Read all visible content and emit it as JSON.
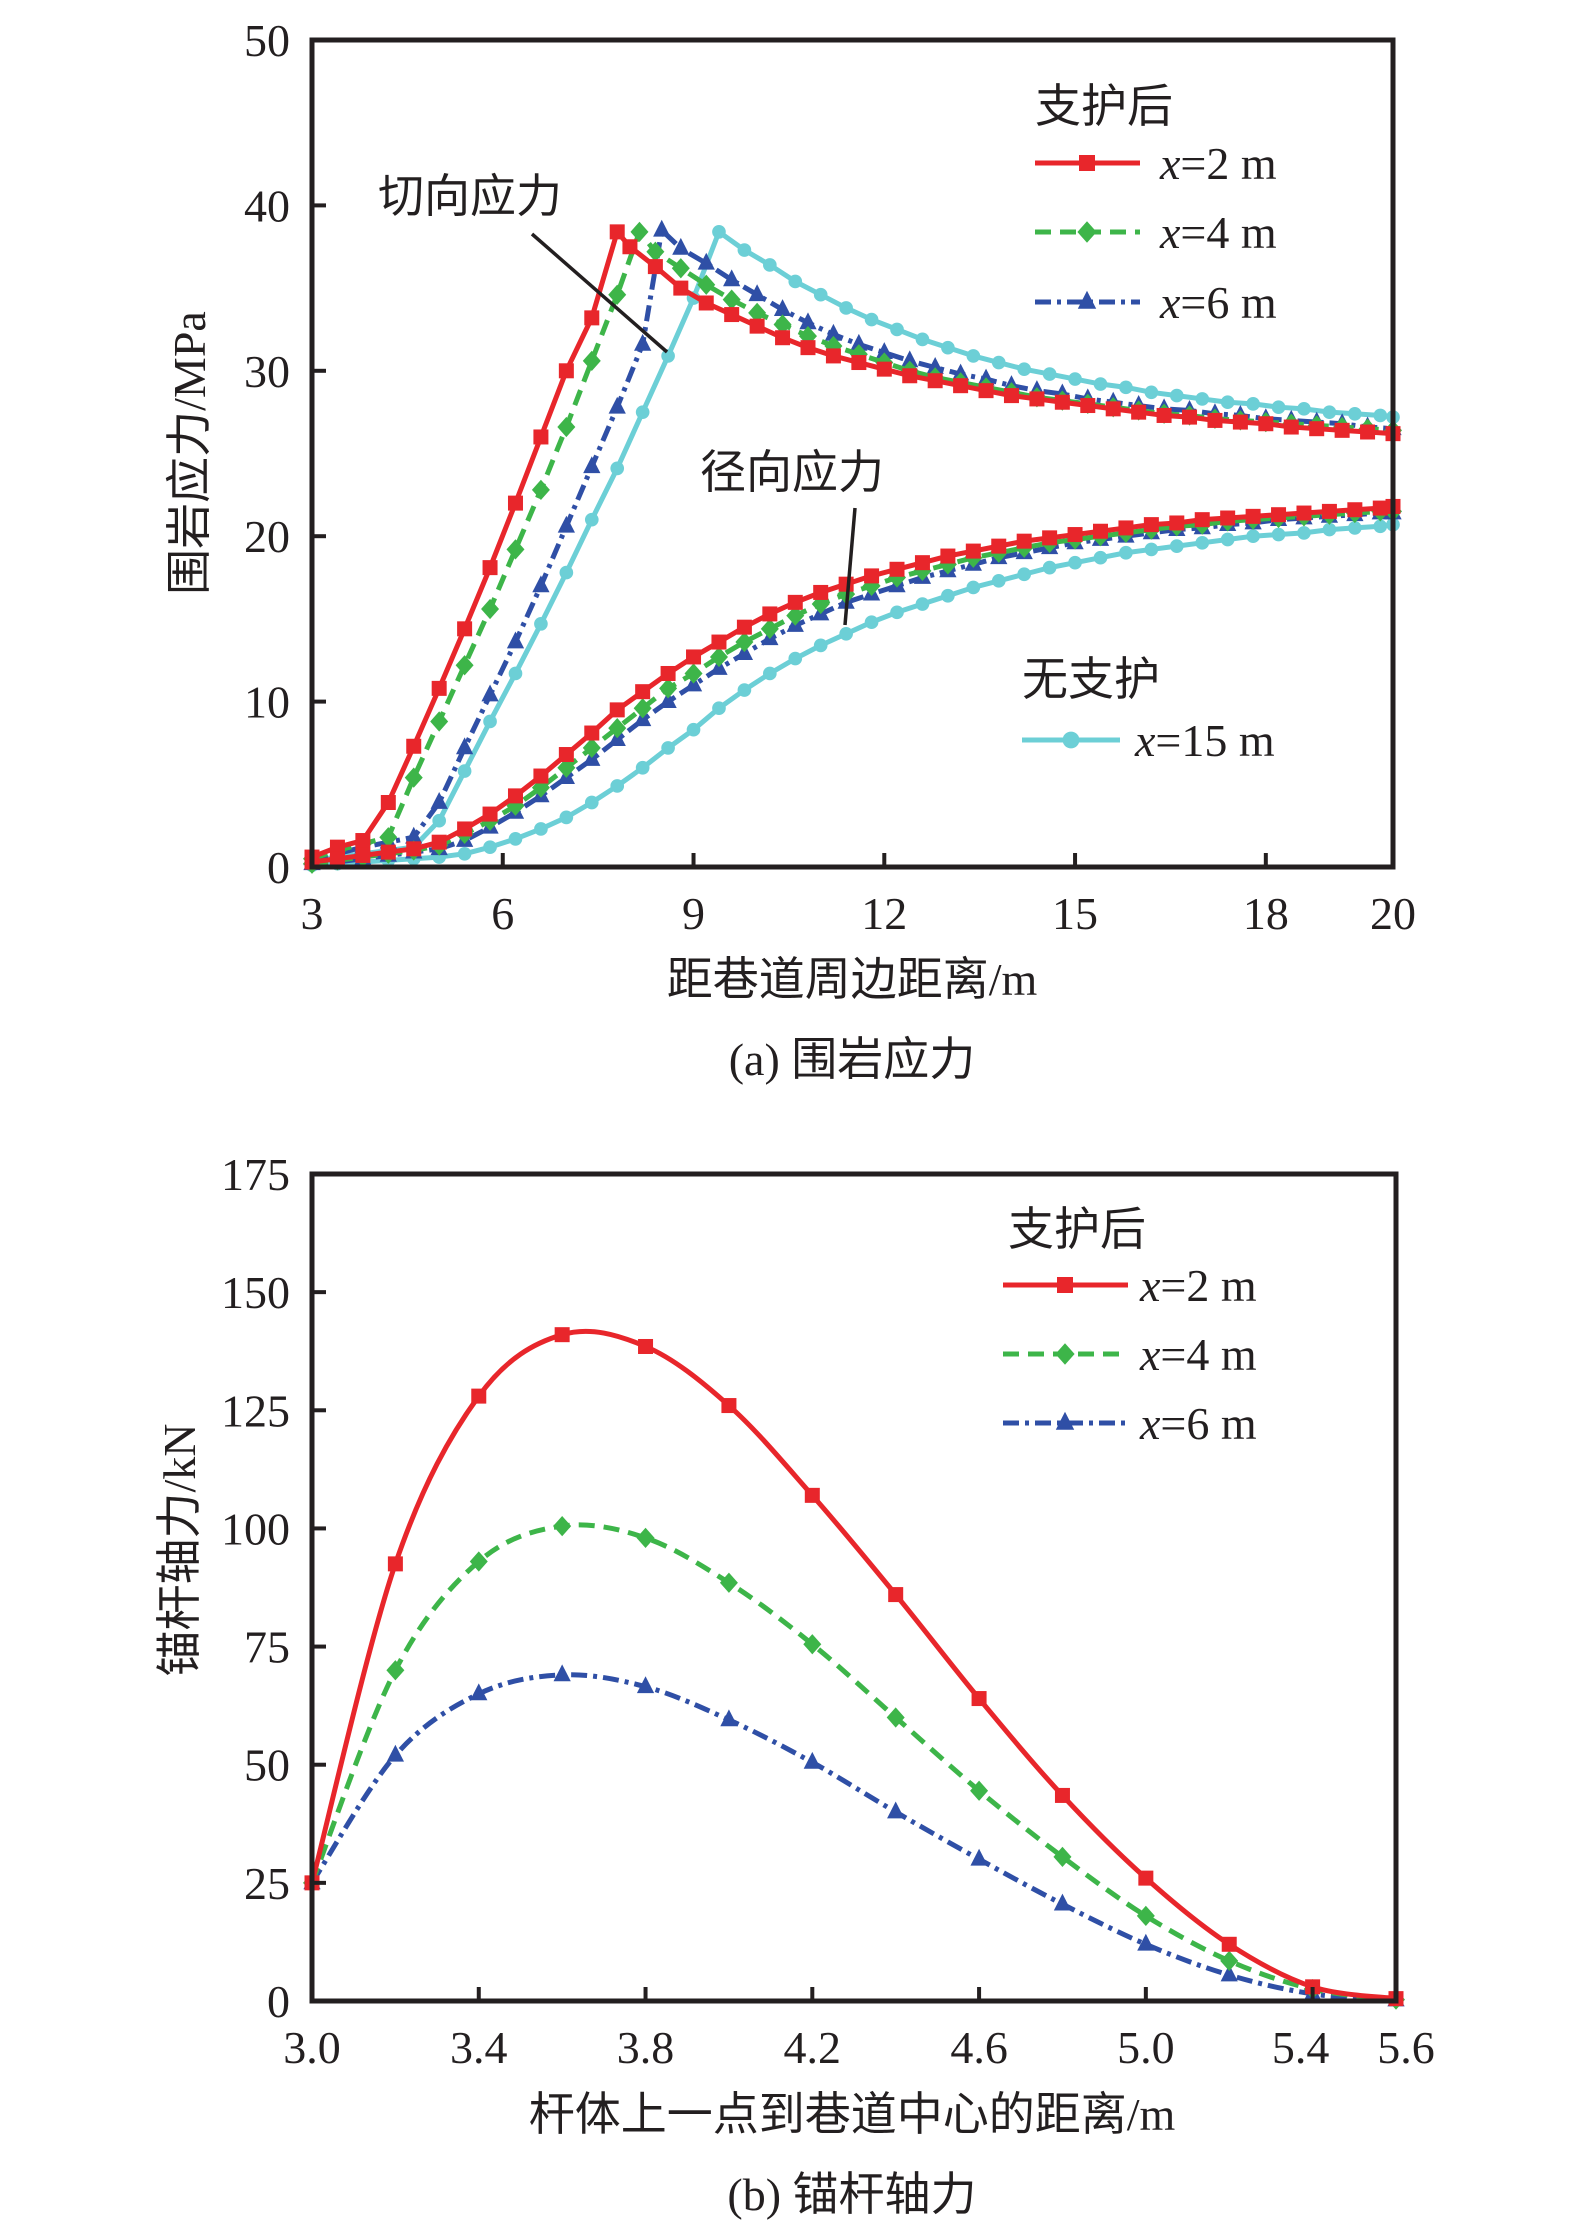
{
  "chart_data": [
    {
      "id": "a",
      "type": "line",
      "caption": "(a) 围岩应力",
      "xlabel": "距巷道周边距离/m",
      "ylabel": "围岩应力/MPa",
      "xlim": [
        3,
        20
      ],
      "ylim": [
        0,
        50
      ],
      "xticks": [
        3,
        6,
        9,
        12,
        15,
        18,
        20
      ],
      "yticks": [
        0,
        10,
        20,
        30,
        40,
        50
      ],
      "grid": false,
      "annotations": [
        {
          "text": "切向应力",
          "target": "tangential stress curves"
        },
        {
          "text": "径向应力",
          "target": "radial stress curves"
        }
      ],
      "legend_groups": [
        {
          "title": "支护后",
          "placement": "top-right",
          "entries": [
            "x=2 m",
            "x=4 m",
            "x=6 m"
          ]
        },
        {
          "title": "无支护",
          "placement": "bottom-right",
          "entries": [
            "x=15 m"
          ]
        }
      ],
      "series": [
        {
          "name": "x=2 m",
          "group": "支护后",
          "color": "#e8262b",
          "marker": "square",
          "dash": "solid",
          "tangential": {
            "x": [
              3.0,
              3.4,
              3.8,
              4.2,
              4.6,
              5.0,
              5.4,
              5.8,
              6.2,
              6.6,
              7.0,
              7.4,
              7.8,
              8.0,
              8.4,
              8.8,
              9.2,
              9.6,
              10.0,
              10.4,
              10.8,
              11.2,
              11.6,
              12.0,
              12.4,
              12.8,
              13.2,
              13.6,
              14.0,
              14.4,
              14.8,
              15.2,
              15.6,
              16.0,
              16.4,
              16.8,
              17.2,
              17.6,
              18.0,
              18.4,
              18.8,
              19.2,
              19.6,
              20.0
            ],
            "y": [
              0.6,
              1.2,
              1.6,
              3.9,
              7.3,
              10.8,
              14.4,
              18.1,
              22.0,
              26.0,
              30.0,
              33.2,
              38.4,
              37.5,
              36.3,
              35.0,
              34.1,
              33.4,
              32.7,
              32.0,
              31.4,
              30.9,
              30.5,
              30.1,
              29.7,
              29.4,
              29.1,
              28.8,
              28.5,
              28.3,
              28.1,
              27.9,
              27.7,
              27.5,
              27.3,
              27.2,
              27.0,
              26.9,
              26.8,
              26.6,
              26.5,
              26.4,
              26.3,
              26.2
            ]
          },
          "radial": {
            "x": [
              3.0,
              3.4,
              3.8,
              4.2,
              4.6,
              5.0,
              5.4,
              5.8,
              6.2,
              6.6,
              7.0,
              7.4,
              7.8,
              8.2,
              8.6,
              9.0,
              9.4,
              9.8,
              10.2,
              10.6,
              11.0,
              11.4,
              11.8,
              12.2,
              12.6,
              13.0,
              13.4,
              13.8,
              14.2,
              14.6,
              15.0,
              15.4,
              15.8,
              16.2,
              16.6,
              17.0,
              17.4,
              17.8,
              18.2,
              18.6,
              19.0,
              19.4,
              19.8,
              20.0
            ],
            "y": [
              0.3,
              0.5,
              0.7,
              0.9,
              1.1,
              1.5,
              2.3,
              3.2,
              4.3,
              5.5,
              6.8,
              8.1,
              9.5,
              10.6,
              11.7,
              12.7,
              13.6,
              14.5,
              15.3,
              16.0,
              16.6,
              17.1,
              17.6,
              18.0,
              18.4,
              18.8,
              19.1,
              19.4,
              19.7,
              19.9,
              20.1,
              20.3,
              20.5,
              20.7,
              20.8,
              21.0,
              21.1,
              21.2,
              21.3,
              21.4,
              21.5,
              21.6,
              21.7,
              21.8
            ]
          }
        },
        {
          "name": "x=4 m",
          "group": "支护后",
          "color": "#3db549",
          "marker": "diamond",
          "dash": "dashed",
          "tangential": {
            "x": [
              3.0,
              3.4,
              3.8,
              4.2,
              4.6,
              5.0,
              5.4,
              5.8,
              6.2,
              6.6,
              7.0,
              7.4,
              7.8,
              8.15,
              8.4,
              8.8,
              9.2,
              9.6,
              10.0,
              10.4,
              10.8,
              11.2,
              11.6,
              12.0,
              12.4,
              12.8,
              13.2,
              13.6,
              14.0,
              14.4,
              14.8,
              15.2,
              15.6,
              16.0,
              16.4,
              16.8,
              17.2,
              17.6,
              18.0,
              18.4,
              18.8,
              19.2,
              19.6,
              20.0
            ],
            "y": [
              0.5,
              1.0,
              1.4,
              1.8,
              5.4,
              8.8,
              12.2,
              15.6,
              19.2,
              22.8,
              26.6,
              30.6,
              34.6,
              38.4,
              37.2,
              36.2,
              35.2,
              34.3,
              33.5,
              32.8,
              32.1,
              31.5,
              31.0,
              30.5,
              30.0,
              29.6,
              29.3,
              29.0,
              28.7,
              28.4,
              28.2,
              28.0,
              27.8,
              27.6,
              27.4,
              27.3,
              27.1,
              27.0,
              26.9,
              26.8,
              26.7,
              26.6,
              26.5,
              26.4
            ]
          },
          "radial": {
            "x": [
              3.0,
              3.4,
              3.8,
              4.2,
              4.6,
              5.0,
              5.4,
              5.8,
              6.2,
              6.6,
              7.0,
              7.4,
              7.8,
              8.2,
              8.6,
              9.0,
              9.4,
              9.8,
              10.2,
              10.6,
              11.0,
              11.4,
              11.8,
              12.2,
              12.6,
              13.0,
              13.4,
              13.8,
              14.2,
              14.6,
              15.0,
              15.4,
              15.8,
              16.2,
              16.6,
              17.0,
              17.4,
              17.8,
              18.2,
              18.6,
              19.0,
              19.4,
              19.8,
              20.0
            ],
            "y": [
              0.2,
              0.4,
              0.6,
              0.8,
              1.0,
              1.3,
              2.0,
              2.8,
              3.7,
              4.8,
              6.0,
              7.2,
              8.4,
              9.6,
              10.8,
              11.7,
              12.7,
              13.6,
              14.4,
              15.2,
              15.9,
              16.5,
              17.0,
              17.5,
              17.9,
              18.3,
              18.7,
              19.0,
              19.3,
              19.6,
              19.8,
              20.0,
              20.2,
              20.4,
              20.6,
              20.7,
              20.9,
              21.0,
              21.1,
              21.2,
              21.3,
              21.4,
              21.5,
              21.5
            ]
          }
        },
        {
          "name": "x=6 m",
          "group": "支护后",
          "color": "#2f4fa6",
          "marker": "triangle",
          "dash": "dash-dot",
          "tangential": {
            "x": [
              3.0,
              3.4,
              3.8,
              4.2,
              4.6,
              5.0,
              5.4,
              5.8,
              6.2,
              6.6,
              7.0,
              7.4,
              7.8,
              8.2,
              8.5,
              8.8,
              9.2,
              9.6,
              10.0,
              10.4,
              10.8,
              11.2,
              11.6,
              12.0,
              12.4,
              12.8,
              13.2,
              13.6,
              14.0,
              14.4,
              14.8,
              15.2,
              15.6,
              16.0,
              16.4,
              16.8,
              17.2,
              17.6,
              18.0,
              18.4,
              18.8,
              19.2,
              19.6,
              20.0
            ],
            "y": [
              0.5,
              0.8,
              1.2,
              1.5,
              1.8,
              3.9,
              7.2,
              10.4,
              13.6,
              17.0,
              20.6,
              24.2,
              27.8,
              31.6,
              38.5,
              37.4,
              36.5,
              35.5,
              34.6,
              33.7,
              32.9,
              32.2,
              31.6,
              31.1,
              30.6,
              30.2,
              29.8,
              29.5,
              29.1,
              28.8,
              28.6,
              28.3,
              28.1,
              27.9,
              27.7,
              27.6,
              27.4,
              27.3,
              27.1,
              27.0,
              26.9,
              26.8,
              26.6,
              26.5
            ]
          },
          "radial": {
            "x": [
              3.0,
              3.4,
              3.8,
              4.2,
              4.6,
              5.0,
              5.4,
              5.8,
              6.2,
              6.6,
              7.0,
              7.4,
              7.8,
              8.2,
              8.6,
              9.0,
              9.4,
              9.8,
              10.2,
              10.6,
              11.0,
              11.4,
              11.8,
              12.2,
              12.6,
              13.0,
              13.4,
              13.8,
              14.2,
              14.6,
              15.0,
              15.4,
              15.8,
              16.2,
              16.6,
              17.0,
              17.4,
              17.8,
              18.2,
              18.6,
              19.0,
              19.4,
              19.8,
              20.0
            ],
            "y": [
              0.2,
              0.3,
              0.5,
              0.7,
              0.9,
              1.1,
              1.6,
              2.4,
              3.3,
              4.3,
              5.4,
              6.5,
              7.7,
              8.9,
              10.0,
              11.0,
              12.0,
              12.9,
              13.8,
              14.6,
              15.3,
              16.0,
              16.5,
              17.0,
              17.5,
              17.9,
              18.3,
              18.7,
              19.0,
              19.3,
              19.6,
              19.8,
              20.0,
              20.2,
              20.4,
              20.5,
              20.7,
              20.8,
              21.0,
              21.1,
              21.2,
              21.3,
              21.4,
              21.4
            ]
          }
        },
        {
          "name": "x=15 m",
          "group": "无支护",
          "color": "#6ccfd6",
          "marker": "circle",
          "dash": "solid",
          "tangential": {
            "x": [
              3.0,
              3.4,
              3.8,
              4.2,
              4.6,
              5.0,
              5.4,
              5.8,
              6.2,
              6.6,
              7.0,
              7.4,
              7.8,
              8.2,
              8.6,
              9.0,
              9.4,
              9.8,
              10.2,
              10.6,
              11.0,
              11.4,
              11.8,
              12.2,
              12.6,
              13.0,
              13.4,
              13.8,
              14.2,
              14.6,
              15.0,
              15.4,
              15.8,
              16.2,
              16.6,
              17.0,
              17.4,
              17.8,
              18.2,
              18.6,
              19.0,
              19.4,
              19.8,
              20.0
            ],
            "y": [
              0.4,
              0.6,
              0.8,
              1.0,
              1.2,
              2.8,
              5.8,
              8.8,
              11.7,
              14.7,
              17.8,
              21.0,
              24.1,
              27.5,
              30.9,
              34.4,
              38.4,
              37.3,
              36.4,
              35.4,
              34.6,
              33.8,
              33.1,
              32.5,
              31.9,
              31.4,
              30.9,
              30.5,
              30.1,
              29.8,
              29.5,
              29.2,
              29.0,
              28.7,
              28.5,
              28.3,
              28.1,
              28.0,
              27.8,
              27.7,
              27.5,
              27.4,
              27.3,
              27.2
            ]
          },
          "radial": {
            "x": [
              3.0,
              3.4,
              3.8,
              4.2,
              4.6,
              5.0,
              5.4,
              5.8,
              6.2,
              6.6,
              7.0,
              7.4,
              7.8,
              8.2,
              8.6,
              9.0,
              9.4,
              9.8,
              10.2,
              10.6,
              11.0,
              11.4,
              11.8,
              12.2,
              12.6,
              13.0,
              13.4,
              13.8,
              14.2,
              14.6,
              15.0,
              15.4,
              15.8,
              16.2,
              16.6,
              17.0,
              17.4,
              17.8,
              18.2,
              18.6,
              19.0,
              19.4,
              19.8,
              20.0
            ],
            "y": [
              0.1,
              0.2,
              0.3,
              0.4,
              0.5,
              0.6,
              0.8,
              1.2,
              1.7,
              2.3,
              3.0,
              3.9,
              4.9,
              6.0,
              7.2,
              8.3,
              9.6,
              10.7,
              11.7,
              12.6,
              13.4,
              14.1,
              14.8,
              15.4,
              15.9,
              16.4,
              16.9,
              17.3,
              17.7,
              18.1,
              18.4,
              18.7,
              19.0,
              19.2,
              19.4,
              19.6,
              19.8,
              20.0,
              20.1,
              20.2,
              20.4,
              20.5,
              20.6,
              20.7
            ]
          }
        }
      ]
    },
    {
      "id": "b",
      "type": "line",
      "caption": "(b) 锚杆轴力",
      "xlabel": "杆体上一点到巷道中心的距离/m",
      "ylabel": "锚杆轴力/kN",
      "xlim": [
        3.0,
        5.6
      ],
      "ylim": [
        0,
        175
      ],
      "xticks": [
        "3.0",
        "3.4",
        "3.8",
        "4.2",
        "4.6",
        "5.0",
        "5.4",
        "5.6"
      ],
      "yticks": [
        0,
        25,
        50,
        75,
        100,
        125,
        150,
        175
      ],
      "grid": false,
      "legend_groups": [
        {
          "title": "支护后",
          "placement": "top-right",
          "entries": [
            "x=2 m",
            "x=4 m",
            "x=6 m"
          ]
        }
      ],
      "x": [
        3.0,
        3.2,
        3.4,
        3.6,
        3.8,
        4.0,
        4.2,
        4.4,
        4.6,
        4.8,
        5.0,
        5.2,
        5.4,
        5.6
      ],
      "series": [
        {
          "name": "x=2 m",
          "color": "#e8262b",
          "marker": "square",
          "dash": "solid",
          "values": [
            25,
            92.5,
            128,
            141,
            138.5,
            126,
            107,
            86,
            64,
            43.5,
            26,
            12,
            3,
            0.5
          ]
        },
        {
          "name": "x=4 m",
          "color": "#3db549",
          "marker": "diamond",
          "dash": "dashed",
          "values": [
            25,
            70,
            93,
            100.5,
            98,
            88.5,
            75.5,
            60,
            44.5,
            30.5,
            18,
            8.5,
            2.5,
            0.3
          ]
        },
        {
          "name": "x=6 m",
          "color": "#2f4fa6",
          "marker": "triangle",
          "dash": "dash-dot",
          "values": [
            25,
            52,
            65,
            69,
            66.5,
            59.5,
            50.5,
            40,
            30,
            20.5,
            12,
            5.5,
            1.5,
            0.2
          ]
        }
      ]
    }
  ]
}
